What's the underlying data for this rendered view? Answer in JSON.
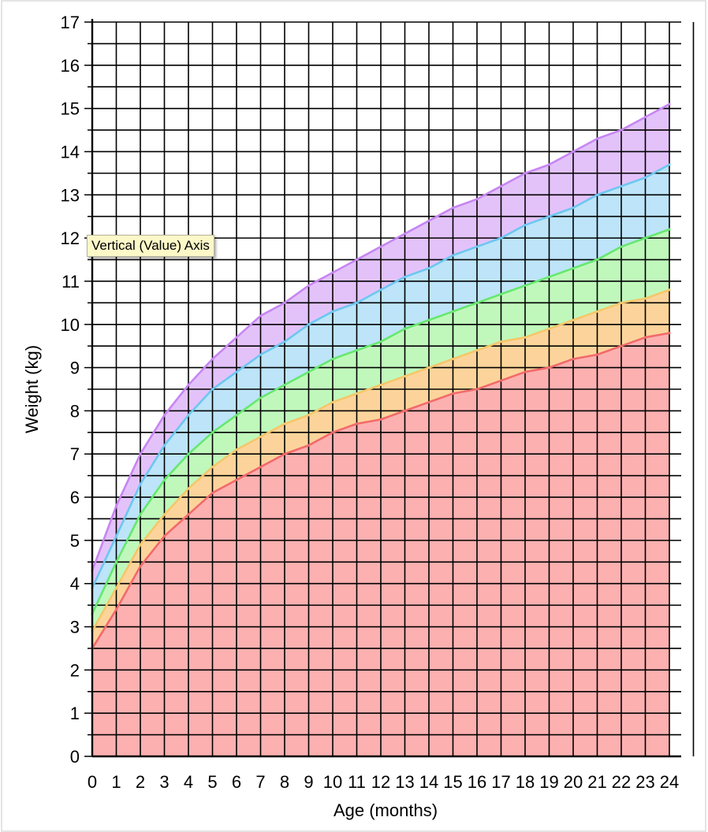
{
  "chart_data": {
    "type": "area",
    "xlabel": "Age (months)",
    "ylabel": "Weight (kg)",
    "xlim": [
      0,
      24
    ],
    "ylim": [
      0,
      17
    ],
    "x": [
      0,
      1,
      2,
      3,
      4,
      5,
      6,
      7,
      8,
      9,
      10,
      11,
      12,
      13,
      14,
      15,
      16,
      17,
      18,
      19,
      20,
      21,
      22,
      23,
      24
    ],
    "x_tick_labels": [
      "0",
      "1",
      "2",
      "3",
      "4",
      "5",
      "6",
      "7",
      "8",
      "9",
      "10",
      "11",
      "12",
      "13",
      "14",
      "15",
      "16",
      "17",
      "18",
      "19",
      "20",
      "21",
      "22",
      "23",
      "24"
    ],
    "y_tick_labels": [
      "0",
      "1",
      "2",
      "3",
      "4",
      "5",
      "6",
      "7",
      "8",
      "9",
      "10",
      "11",
      "12",
      "13",
      "14",
      "15",
      "16",
      "17"
    ],
    "grid": true,
    "series": [
      {
        "color": "#c785f2",
        "fill": "#e3c2fa",
        "values": [
          4.3,
          5.8,
          7.0,
          7.9,
          8.6,
          9.2,
          9.7,
          10.2,
          10.5,
          10.9,
          11.2,
          11.5,
          11.8,
          12.1,
          12.4,
          12.7,
          12.9,
          13.2,
          13.5,
          13.7,
          14.0,
          14.3,
          14.5,
          14.8,
          15.1
        ]
      },
      {
        "color": "#6cc7f0",
        "fill": "#bde4f9",
        "values": [
          3.9,
          5.1,
          6.3,
          7.2,
          7.9,
          8.5,
          8.9,
          9.3,
          9.6,
          10.0,
          10.3,
          10.5,
          10.8,
          11.1,
          11.3,
          11.6,
          11.8,
          12.0,
          12.3,
          12.5,
          12.7,
          13.0,
          13.2,
          13.4,
          13.7
        ]
      },
      {
        "color": "#66e86e",
        "fill": "#c0f8bc",
        "values": [
          3.3,
          4.5,
          5.6,
          6.4,
          7.0,
          7.5,
          7.9,
          8.3,
          8.6,
          8.9,
          9.2,
          9.4,
          9.6,
          9.9,
          10.1,
          10.3,
          10.5,
          10.7,
          10.9,
          11.1,
          11.3,
          11.5,
          11.8,
          12.0,
          12.2
        ]
      },
      {
        "color": "#f5c76a",
        "fill": "#fcd49b",
        "values": [
          2.9,
          3.9,
          4.9,
          5.6,
          6.2,
          6.7,
          7.1,
          7.4,
          7.7,
          7.9,
          8.2,
          8.4,
          8.6,
          8.8,
          9.0,
          9.2,
          9.4,
          9.6,
          9.7,
          9.9,
          10.1,
          10.3,
          10.5,
          10.6,
          10.8
        ]
      },
      {
        "color": "#f26a6a",
        "fill": "#fcb0b0",
        "values": [
          2.5,
          3.4,
          4.4,
          5.1,
          5.6,
          6.1,
          6.4,
          6.7,
          7.0,
          7.2,
          7.5,
          7.7,
          7.8,
          8.0,
          8.2,
          8.4,
          8.5,
          8.7,
          8.9,
          9.0,
          9.2,
          9.3,
          9.5,
          9.7,
          9.8
        ]
      }
    ]
  },
  "tooltip": {
    "text": "Vertical (Value) Axis"
  }
}
